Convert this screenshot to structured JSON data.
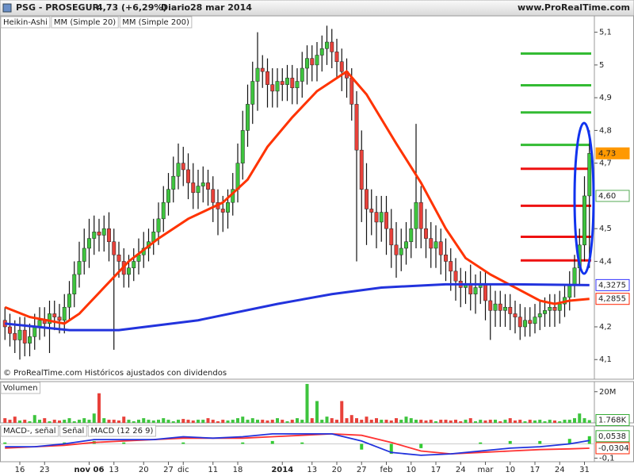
{
  "header": {
    "symbol": "PSG - PROSEGUR",
    "quote": "4,73 (+6,29%)",
    "period": "Diario",
    "date": "28 mar 2014",
    "site": "www.ProRealTime.com"
  },
  "chart_data": [
    {
      "type": "candlestick",
      "label": "Heikin-Ashi",
      "footnote": "© ProRealTime.com  Históricos ajustados con dividendos",
      "xlim": [
        -1,
        119
      ],
      "xticks": [
        {
          "value": 3,
          "label": "16"
        },
        {
          "value": 8,
          "label": "23"
        },
        {
          "value": 17,
          "label": "nov 06"
        },
        {
          "value": 22,
          "label": "13"
        },
        {
          "value": 28,
          "label": "20"
        },
        {
          "value": 33,
          "label": "27"
        },
        {
          "value": 36,
          "label": "dic"
        },
        {
          "value": 42,
          "label": "11"
        },
        {
          "value": 47,
          "label": "18"
        },
        {
          "value": 56,
          "label": "2014"
        },
        {
          "value": 62,
          "label": "13"
        },
        {
          "value": 67,
          "label": "20"
        },
        {
          "value": 72,
          "label": "27"
        },
        {
          "value": 77,
          "label": "feb"
        },
        {
          "value": 82,
          "label": "10"
        },
        {
          "value": 87,
          "label": "17"
        },
        {
          "value": 92,
          "label": "24"
        },
        {
          "value": 97,
          "label": "mar"
        },
        {
          "value": 102,
          "label": "10"
        },
        {
          "value": 107,
          "label": "17"
        },
        {
          "value": 112,
          "label": "24"
        },
        {
          "value": 117,
          "label": "31"
        }
      ],
      "ylim": [
        4.04,
        5.15
      ],
      "yticks": [
        {
          "value": 5.1,
          "label": "5,1"
        },
        5,
        {
          "value": 4.9,
          "label": "4,9"
        },
        {
          "value": 4.8,
          "label": "4,8"
        },
        {
          "value": 4.7,
          "label": "4,7"
        },
        {
          "value": 4.5,
          "label": "4,5"
        },
        {
          "value": 4.4,
          "label": "4,4"
        },
        {
          "value": 4.2,
          "label": "4,2"
        },
        {
          "value": 4.1,
          "label": "4,1"
        }
      ],
      "up_color": "#3ec43e",
      "down_color": "#e8413a",
      "open": [
        4.22,
        4.2,
        4.18,
        4.16,
        4.19,
        4.15,
        4.17,
        4.2,
        4.22,
        4.21,
        4.24,
        4.23,
        4.22,
        4.26,
        4.3,
        4.36,
        4.4,
        4.44,
        4.47,
        4.49,
        4.48,
        4.5,
        4.46,
        4.42,
        4.4,
        4.36,
        4.38,
        4.4,
        4.42,
        4.44,
        4.46,
        4.49,
        4.53,
        4.58,
        4.62,
        4.66,
        4.7,
        4.68,
        4.64,
        4.61,
        4.63,
        4.64,
        4.62,
        4.58,
        4.56,
        4.55,
        4.58,
        4.62,
        4.7,
        4.8,
        4.88,
        4.95,
        4.99,
        4.98,
        4.94,
        4.92,
        4.95,
        4.94,
        4.96,
        4.93,
        4.95,
        4.99,
        5.02,
        5.0,
        5.03,
        5.05,
        5.07,
        5.04,
        5.01,
        4.98,
        4.96,
        4.88,
        4.74,
        4.62,
        4.56,
        4.55,
        4.52,
        4.55,
        4.5,
        4.45,
        4.42,
        4.44,
        4.46,
        4.5,
        4.58,
        4.5,
        4.47,
        4.44,
        4.46,
        4.42,
        4.4,
        4.37,
        4.34,
        4.32,
        4.33,
        4.3,
        4.32,
        4.33,
        4.28,
        4.25,
        4.27,
        4.25,
        4.26,
        4.24,
        4.23,
        4.2,
        4.22,
        4.21,
        4.23,
        4.24,
        4.25,
        4.26,
        4.25,
        4.27,
        4.29,
        4.33,
        4.38,
        4.45,
        4.6
      ],
      "high": [
        4.26,
        4.24,
        4.22,
        4.23,
        4.23,
        4.21,
        4.24,
        4.26,
        4.26,
        4.28,
        4.28,
        4.27,
        4.3,
        4.34,
        4.4,
        4.46,
        4.5,
        4.53,
        4.54,
        4.53,
        4.54,
        4.55,
        4.5,
        4.46,
        4.44,
        4.42,
        4.44,
        4.47,
        4.49,
        4.5,
        4.53,
        4.58,
        4.63,
        4.67,
        4.72,
        4.76,
        4.75,
        4.73,
        4.7,
        4.68,
        4.69,
        4.68,
        4.66,
        4.62,
        4.6,
        4.62,
        4.67,
        4.76,
        4.86,
        4.94,
        5.01,
        5.1,
        5.03,
        5.02,
        4.99,
        4.99,
        4.99,
        5.0,
        5.0,
        4.99,
        5.04,
        5.06,
        5.06,
        5.07,
        5.09,
        5.12,
        5.11,
        5.08,
        5.05,
        5.02,
        4.99,
        4.92,
        4.8,
        4.7,
        4.62,
        4.6,
        4.6,
        4.6,
        4.56,
        4.52,
        4.5,
        4.52,
        4.56,
        4.82,
        4.63,
        4.56,
        4.52,
        4.51,
        4.5,
        4.47,
        4.44,
        4.41,
        4.38,
        4.37,
        4.39,
        4.36,
        4.37,
        4.37,
        4.33,
        4.31,
        4.31,
        4.3,
        4.3,
        4.28,
        4.27,
        4.26,
        4.26,
        4.27,
        4.28,
        4.29,
        4.3,
        4.3,
        4.31,
        4.33,
        4.37,
        4.42,
        4.5,
        4.66,
        4.8
      ],
      "low": [
        4.16,
        4.14,
        4.12,
        4.1,
        4.11,
        4.11,
        4.13,
        4.16,
        4.17,
        4.12,
        4.19,
        4.18,
        4.18,
        4.22,
        4.26,
        4.32,
        4.36,
        4.38,
        4.42,
        4.43,
        4.43,
        4.4,
        4.13,
        4.35,
        4.32,
        4.32,
        4.34,
        4.36,
        4.38,
        4.4,
        4.42,
        4.45,
        4.49,
        4.54,
        4.58,
        4.62,
        4.63,
        4.59,
        4.56,
        4.56,
        4.58,
        4.57,
        4.52,
        4.48,
        4.49,
        4.5,
        4.54,
        4.58,
        4.65,
        4.75,
        4.82,
        4.86,
        4.93,
        4.87,
        4.87,
        4.87,
        4.89,
        4.89,
        4.88,
        4.88,
        4.9,
        4.94,
        4.95,
        4.95,
        4.98,
        5.0,
        4.99,
        4.96,
        4.92,
        4.9,
        4.83,
        4.4,
        4.52,
        4.45,
        4.48,
        4.44,
        4.46,
        4.42,
        4.38,
        4.35,
        4.37,
        4.39,
        4.41,
        4.44,
        4.44,
        4.41,
        4.38,
        4.38,
        4.36,
        4.34,
        4.31,
        4.28,
        4.26,
        4.27,
        4.25,
        4.24,
        4.27,
        4.22,
        4.16,
        4.2,
        4.2,
        4.2,
        4.19,
        4.18,
        4.16,
        4.17,
        4.17,
        4.18,
        4.19,
        4.2,
        4.2,
        4.2,
        4.21,
        4.23,
        4.25,
        4.29,
        4.33,
        4.4,
        4.38
      ],
      "close": [
        4.2,
        4.18,
        4.16,
        4.19,
        4.15,
        4.17,
        4.2,
        4.22,
        4.21,
        4.24,
        4.23,
        4.22,
        4.26,
        4.3,
        4.36,
        4.4,
        4.44,
        4.47,
        4.49,
        4.48,
        4.5,
        4.46,
        4.42,
        4.4,
        4.36,
        4.38,
        4.4,
        4.42,
        4.44,
        4.46,
        4.49,
        4.53,
        4.58,
        4.62,
        4.66,
        4.7,
        4.68,
        4.64,
        4.61,
        4.63,
        4.64,
        4.62,
        4.58,
        4.56,
        4.55,
        4.58,
        4.62,
        4.7,
        4.8,
        4.88,
        4.95,
        4.99,
        4.98,
        4.94,
        4.92,
        4.95,
        4.94,
        4.96,
        4.93,
        4.95,
        4.99,
        5.02,
        5.0,
        5.03,
        5.05,
        5.07,
        5.04,
        5.01,
        4.98,
        4.96,
        4.88,
        4.74,
        4.62,
        4.56,
        4.55,
        4.52,
        4.55,
        4.5,
        4.45,
        4.42,
        4.44,
        4.46,
        4.5,
        4.58,
        4.5,
        4.47,
        4.44,
        4.46,
        4.42,
        4.4,
        4.37,
        4.34,
        4.32,
        4.33,
        4.3,
        4.32,
        4.33,
        4.28,
        4.25,
        4.27,
        4.25,
        4.26,
        4.24,
        4.23,
        4.2,
        4.22,
        4.21,
        4.23,
        4.24,
        4.25,
        4.26,
        4.25,
        4.27,
        4.29,
        4.33,
        4.38,
        4.45,
        4.6,
        4.73
      ],
      "lines": [
        {
          "name": "MM (Simple 20)",
          "color": "#ff3300",
          "x": [
            0,
            5,
            12,
            15,
            20,
            25,
            31,
            37,
            44,
            49,
            53,
            58,
            63,
            69,
            73,
            79,
            84,
            89,
            93,
            98,
            103,
            108,
            111,
            114,
            118
          ],
          "values": [
            4.26,
            4.23,
            4.21,
            4.24,
            4.32,
            4.4,
            4.47,
            4.53,
            4.58,
            4.65,
            4.75,
            4.84,
            4.92,
            4.98,
            4.91,
            4.76,
            4.64,
            4.5,
            4.41,
            4.36,
            4.32,
            4.28,
            4.27,
            4.28,
            4.2855
          ]
        },
        {
          "name": "MM (Simple 200)",
          "color": "#2233dd",
          "x": [
            0,
            13,
            23,
            39,
            55,
            66,
            76,
            89,
            103,
            118
          ],
          "values": [
            4.21,
            4.19,
            4.19,
            4.22,
            4.27,
            4.3,
            4.32,
            4.33,
            4.33,
            4.3275
          ]
        }
      ],
      "levels": [
        {
          "value": 5.035,
          "color": "#33bb33"
        },
        {
          "value": 4.938,
          "color": "#33bb33"
        },
        {
          "value": 4.855,
          "color": "#33bb33"
        },
        {
          "value": 4.756,
          "color": "#33bb33"
        },
        {
          "value": 4.683,
          "color": "#ee1111"
        },
        {
          "value": 4.57,
          "color": "#ee1111"
        },
        {
          "value": 4.475,
          "color": "#ee1111"
        },
        {
          "value": 4.403,
          "color": "#ee1111"
        }
      ],
      "markers": [
        {
          "value": 4.73,
          "label": "4,73",
          "color": "#ff9900",
          "filled": true
        },
        {
          "value": 4.6,
          "label": "4,60",
          "color": "#55aa55"
        },
        {
          "value": 4.3275,
          "label": "4,3275",
          "color": "#3333ff"
        },
        {
          "value": 4.2855,
          "label": "4,2855",
          "color": "#ff2200"
        }
      ]
    },
    {
      "type": "volume",
      "label": "Volumen",
      "ylim": [
        0,
        26.5
      ],
      "yticks": [
        {
          "value": 20,
          "label": "20M"
        }
      ],
      "values": [
        3,
        2,
        4,
        1.5,
        2,
        1,
        5,
        2,
        3,
        1,
        2,
        1.5,
        2,
        3,
        1,
        2,
        3,
        2,
        6,
        19,
        3,
        2,
        2,
        1.5,
        4,
        2,
        1,
        2,
        3,
        2,
        1.5,
        2,
        3,
        2,
        1,
        2,
        2.5,
        2,
        1.5,
        2,
        2,
        3,
        2,
        1,
        2,
        1.5,
        2,
        3,
        4,
        2,
        3,
        2,
        2,
        1.5,
        2,
        3,
        2,
        1,
        2,
        3,
        2,
        25,
        3,
        14,
        2,
        4,
        3,
        2,
        14,
        3,
        5,
        3,
        2,
        4,
        2,
        3,
        2,
        2,
        1.5,
        3,
        2,
        4,
        3,
        2,
        2,
        1.5,
        2,
        1,
        2,
        2,
        1.5,
        2,
        1,
        2,
        3,
        1,
        2,
        1.5,
        2,
        2,
        1,
        2,
        3,
        1.5,
        2,
        1,
        2,
        1.5,
        2,
        1,
        2,
        1.5,
        1,
        2,
        2,
        3,
        6,
        3,
        1.768
      ],
      "markers": [
        {
          "value": 1.768,
          "label": "1.768K",
          "color": "#33aa33"
        }
      ]
    },
    {
      "type": "macd",
      "ylim": [
        -0.125,
        0.125
      ],
      "yticks": [
        {
          "value": -0.1,
          "label": "-0,1"
        }
      ],
      "series": [
        {
          "name": "MACD-, señal",
          "color": "#33cc33",
          "style": "bar",
          "x": [
            0,
            6,
            12,
            18,
            24,
            30,
            36,
            42,
            48,
            54,
            60,
            66,
            72,
            78,
            84,
            90,
            96,
            102,
            108,
            114,
            118
          ],
          "values": [
            0.01,
            0,
            0.01,
            0.02,
            0.01,
            0,
            0.01,
            0,
            0.01,
            0.02,
            0.01,
            0,
            -0.04,
            -0.07,
            -0.03,
            0,
            0.01,
            0.02,
            0.02,
            0.035,
            0.0538
          ]
        },
        {
          "name": "Señal",
          "color": "#ff3333",
          "style": "line",
          "x": [
            0,
            6,
            12,
            18,
            24,
            30,
            36,
            42,
            48,
            54,
            60,
            66,
            72,
            78,
            84,
            90,
            96,
            102,
            108,
            114,
            118
          ],
          "values": [
            -0.03,
            -0.02,
            -0.01,
            0.01,
            0.02,
            0.03,
            0.04,
            0.04,
            0.04,
            0.05,
            0.06,
            0.07,
            0.06,
            0.01,
            -0.05,
            -0.07,
            -0.06,
            -0.05,
            -0.04,
            -0.035,
            -0.0304
          ]
        },
        {
          "name": "MACD (12 26 9)",
          "color": "#2233dd",
          "style": "line",
          "x": [
            0,
            6,
            12,
            18,
            24,
            30,
            36,
            42,
            48,
            54,
            60,
            66,
            72,
            78,
            84,
            90,
            96,
            102,
            108,
            114,
            118
          ],
          "values": [
            -0.02,
            -0.02,
            0,
            0.03,
            0.03,
            0.03,
            0.05,
            0.04,
            0.05,
            0.07,
            0.07,
            0.07,
            0.02,
            -0.06,
            -0.08,
            -0.07,
            -0.05,
            -0.03,
            -0.02,
            0,
            0.0234
          ]
        }
      ],
      "markers": [
        {
          "value": 0.0538,
          "label": "0,0538",
          "color": "#33aa33"
        },
        {
          "value": -0.0304,
          "label": "-0,0304",
          "color": "#ff2200"
        }
      ]
    }
  ]
}
